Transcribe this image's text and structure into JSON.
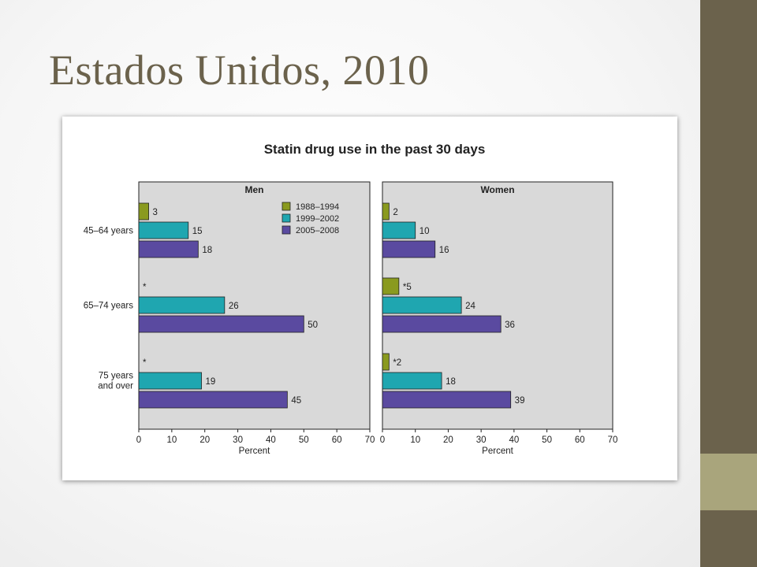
{
  "slide": {
    "title": "Estados Unidos, 2010"
  },
  "colors": {
    "slide_accent": "#6b624c",
    "slide_accent_light": "#a9a57c",
    "panel_bg": "#d9d9d9",
    "series_1988": "#8a9a1f",
    "series_1999": "#1fa6b0",
    "series_2005": "#5a4aa0"
  },
  "chart_data": {
    "type": "bar",
    "orientation": "horizontal",
    "title": "Statin drug use in the past 30 days",
    "categories": [
      "45–64 years",
      "65–74 years",
      "75 years and over"
    ],
    "xlabel": "Percent",
    "xlim": [
      0,
      70
    ],
    "xticks": [
      "0",
      "10",
      "20",
      "30",
      "40",
      "50",
      "60",
      "70"
    ],
    "legend": {
      "placement": "top-right (Men panel)",
      "entries": [
        "1988–1994",
        "1999–2002",
        "2005–2008"
      ]
    },
    "panels": [
      {
        "name": "Men",
        "series": [
          {
            "name": "1988–1994",
            "values": [
              3,
              null,
              null
            ],
            "labels": [
              "3",
              "*",
              "*"
            ]
          },
          {
            "name": "1999–2002",
            "values": [
              15,
              26,
              19
            ],
            "labels": [
              "15",
              "26",
              "19"
            ]
          },
          {
            "name": "2005–2008",
            "values": [
              18,
              50,
              45
            ],
            "labels": [
              "18",
              "50",
              "45"
            ]
          }
        ]
      },
      {
        "name": "Women",
        "series": [
          {
            "name": "1988–1994",
            "values": [
              2,
              5,
              2
            ],
            "labels": [
              "2",
              "*5",
              "*2"
            ]
          },
          {
            "name": "1999–2002",
            "values": [
              10,
              24,
              18
            ],
            "labels": [
              "10",
              "24",
              "18"
            ]
          },
          {
            "name": "2005–2008",
            "values": [
              16,
              36,
              39
            ],
            "labels": [
              "16",
              "36",
              "39"
            ]
          }
        ]
      }
    ]
  }
}
